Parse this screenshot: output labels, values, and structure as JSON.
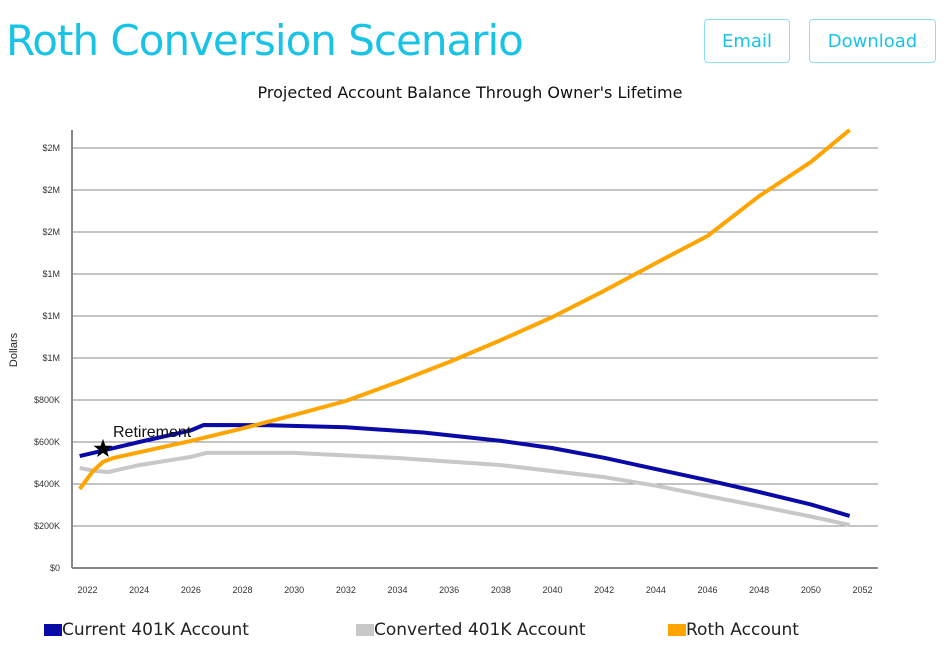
{
  "header": {
    "title": "Roth Conversion Scenario",
    "email_label": "Email",
    "download_label": "Download"
  },
  "colors": {
    "accent": "#19c3e6",
    "current": "#0a0aa6",
    "converted": "#c8c8c8",
    "roth": "#ffa500"
  },
  "chart_data": {
    "type": "line",
    "title": "Projected Account Balance Through Owner's Lifetime",
    "xlabel": "",
    "ylabel": "Dollars",
    "xlim": [
      2021.4,
      2052.6
    ],
    "ylim": [
      0,
      2100000
    ],
    "grid": true,
    "x_ticks": [
      2022,
      2024,
      2026,
      2028,
      2030,
      2032,
      2034,
      2036,
      2038,
      2040,
      2042,
      2044,
      2046,
      2048,
      2050,
      2052
    ],
    "y_ticks": [
      0,
      200000,
      400000,
      600000,
      800000,
      1000000,
      1200000,
      1400000,
      1600000,
      1800000,
      2000000
    ],
    "y_tick_labels": [
      "$0",
      "$200K",
      "$400K",
      "$600K",
      "$800K",
      "$1M",
      "$1M",
      "$1M",
      "$2M",
      "$2M",
      "$2M"
    ],
    "legend_position": "bottom",
    "series": [
      {
        "name": "Current 401K Account",
        "color": "#0a0aa6",
        "points": [
          [
            2021.7,
            533000
          ],
          [
            2024,
            600000
          ],
          [
            2026,
            655000
          ],
          [
            2026.5,
            681000
          ],
          [
            2029,
            680000
          ],
          [
            2032,
            670000
          ],
          [
            2035,
            645000
          ],
          [
            2038,
            605000
          ],
          [
            2040,
            571000
          ],
          [
            2042,
            525000
          ],
          [
            2044,
            471000
          ],
          [
            2046,
            418000
          ],
          [
            2048,
            362000
          ],
          [
            2050,
            303000
          ],
          [
            2051.5,
            248000
          ]
        ]
      },
      {
        "name": "Converted 401K Account",
        "color": "#c8c8c8",
        "points": [
          [
            2021.7,
            476000
          ],
          [
            2022.3,
            462000
          ],
          [
            2022.8,
            457000
          ],
          [
            2024,
            490000
          ],
          [
            2026,
            529000
          ],
          [
            2026.6,
            548000
          ],
          [
            2030,
            548000
          ],
          [
            2034,
            524000
          ],
          [
            2038,
            490000
          ],
          [
            2042,
            433000
          ],
          [
            2044,
            392000
          ],
          [
            2046,
            343000
          ],
          [
            2048,
            295000
          ],
          [
            2050,
            245000
          ],
          [
            2051.5,
            205000
          ]
        ]
      },
      {
        "name": "Roth Account",
        "color": "#ffa500",
        "points": [
          [
            2021.7,
            376000
          ],
          [
            2022.2,
            460000
          ],
          [
            2022.6,
            505000
          ],
          [
            2023,
            524000
          ],
          [
            2026,
            605000
          ],
          [
            2028,
            665000
          ],
          [
            2030,
            729000
          ],
          [
            2032,
            795000
          ],
          [
            2034,
            885000
          ],
          [
            2036,
            981000
          ],
          [
            2038,
            1085000
          ],
          [
            2040,
            1195000
          ],
          [
            2042,
            1320000
          ],
          [
            2044,
            1452000
          ],
          [
            2046,
            1581000
          ],
          [
            2048,
            1771000
          ],
          [
            2050,
            1933000
          ],
          [
            2051.5,
            2086000
          ]
        ]
      }
    ],
    "annotations": [
      {
        "type": "star",
        "x": 2022.6,
        "y": 567000,
        "label": "Retirement"
      }
    ]
  }
}
